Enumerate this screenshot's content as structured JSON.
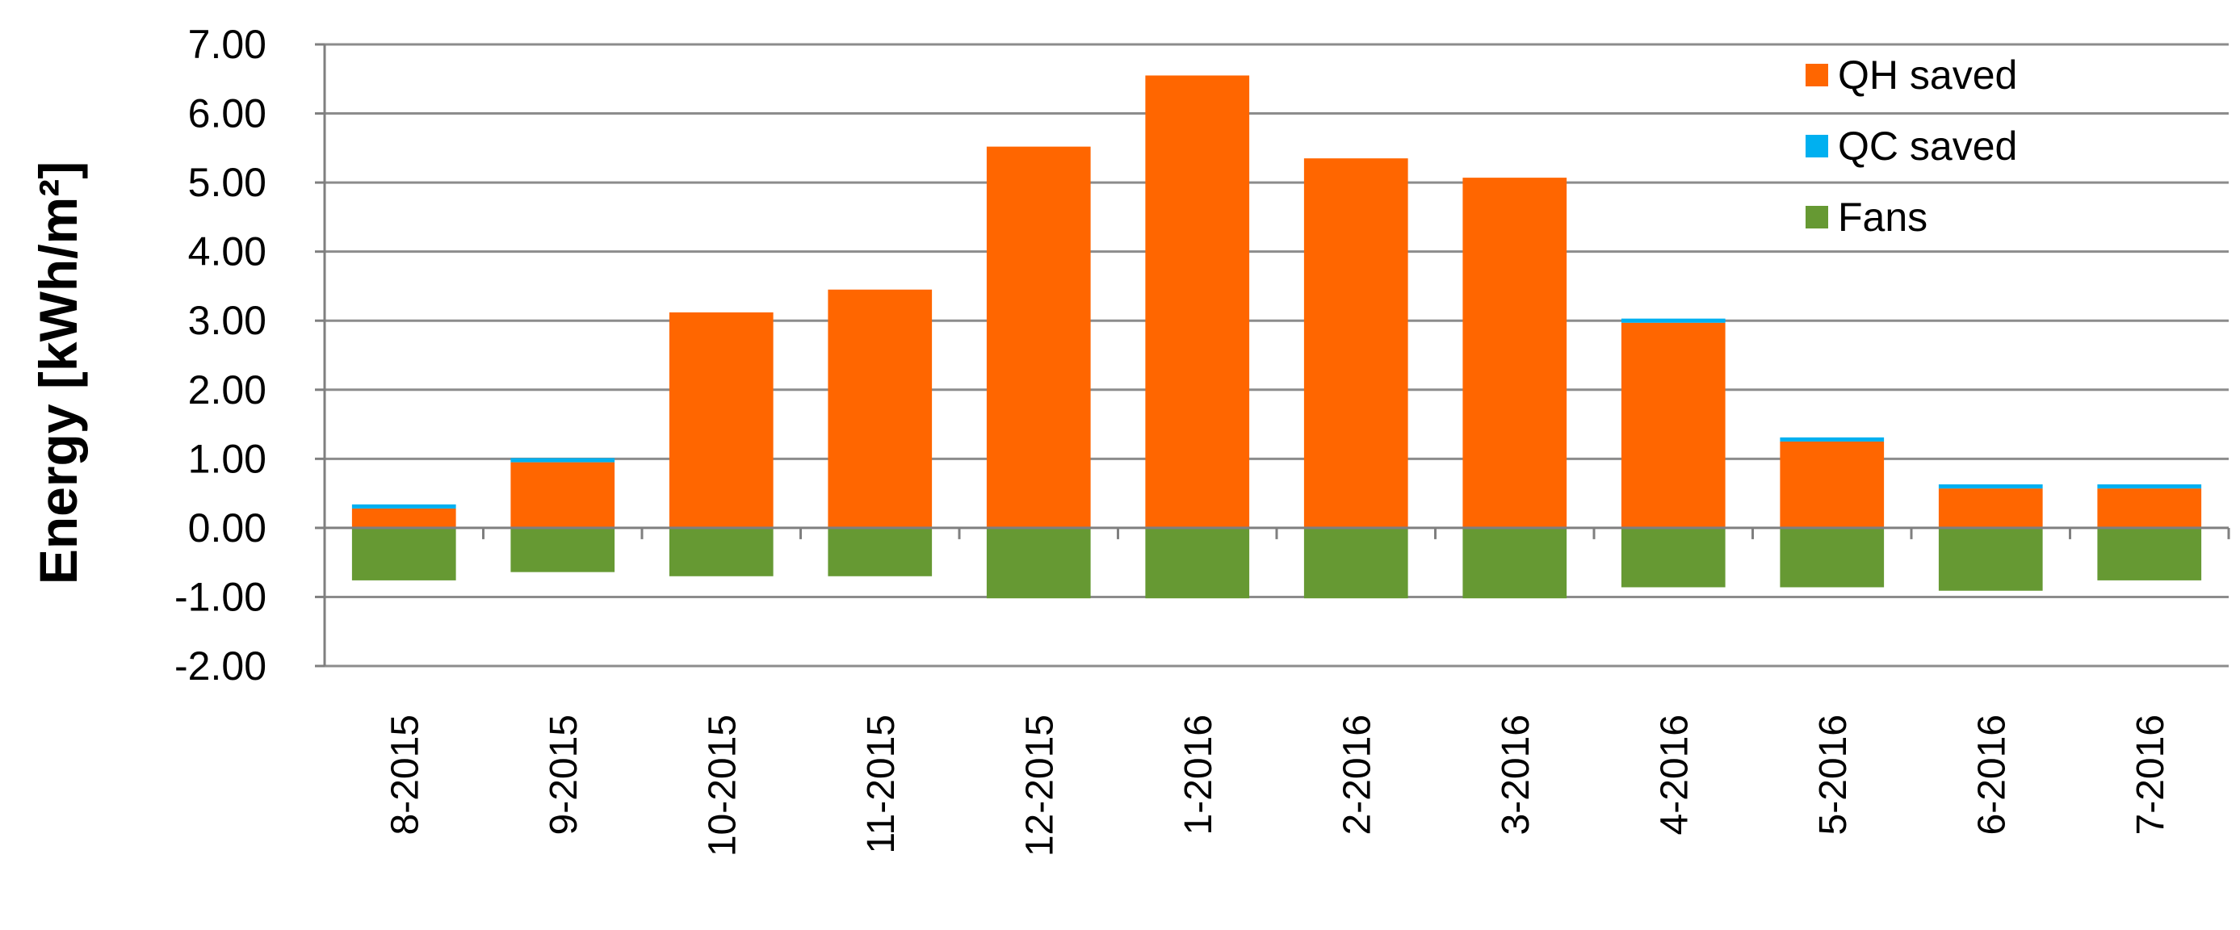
{
  "chart_data": {
    "type": "bar",
    "stacked": true,
    "categories": [
      "8-2015",
      "9-2015",
      "10-2015",
      "11-2015",
      "12-2015",
      "1-2016",
      "2-2016",
      "3-2016",
      "4-2016",
      "5-2016",
      "6-2016",
      "7-2016"
    ],
    "series": [
      {
        "name": "QH saved",
        "color": "#ff6600",
        "values": [
          0.28,
          0.95,
          3.12,
          3.45,
          5.52,
          6.55,
          5.35,
          5.07,
          2.97,
          1.25,
          0.57,
          0.57
        ]
      },
      {
        "name": "QC saved",
        "color": "#00b0f0",
        "values": [
          0.06,
          0.06,
          0.0,
          0.0,
          0.0,
          0.0,
          0.0,
          0.0,
          0.06,
          0.06,
          0.06,
          0.06
        ]
      },
      {
        "name": "Fans",
        "color": "#669933",
        "values": [
          -0.76,
          -0.64,
          -0.7,
          -0.7,
          -1.02,
          -1.02,
          -1.02,
          -1.02,
          -0.86,
          -0.86,
          -0.91,
          -0.76
        ]
      }
    ],
    "ylabel": "Energy [kWh/m²]",
    "xlabel": "",
    "ylim": [
      -2.0,
      7.0
    ],
    "yticks": [
      7.0,
      6.0,
      5.0,
      4.0,
      3.0,
      2.0,
      1.0,
      0.0,
      -1.0,
      -2.0
    ],
    "ytick_labels": [
      "7.00",
      "6.00",
      "5.00",
      "4.00",
      "3.00",
      "2.00",
      "1.00",
      "0.00",
      "-1.00",
      "-2.00"
    ],
    "grid": true,
    "legend_position": "top-right"
  }
}
